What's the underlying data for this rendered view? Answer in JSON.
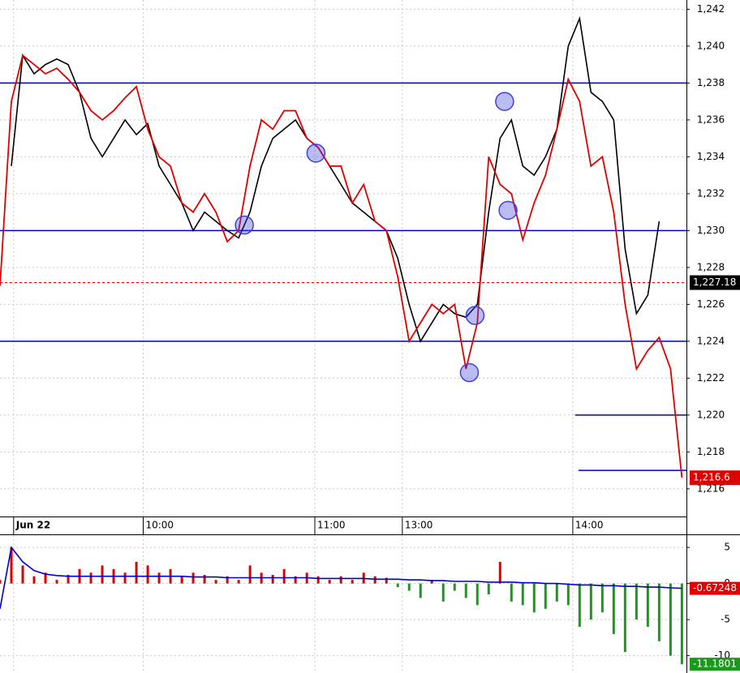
{
  "chart_data": [
    {
      "type": "line",
      "x": [
        0,
        1,
        2,
        3,
        4,
        5,
        6,
        7,
        8,
        9,
        10,
        11,
        12,
        13,
        14,
        15,
        16,
        17,
        18,
        19,
        20,
        21,
        22,
        23,
        24,
        25,
        26,
        27,
        28,
        29,
        30,
        31,
        32,
        33,
        34,
        35,
        36,
        37,
        38,
        39,
        40,
        41,
        42,
        43,
        44,
        45,
        46,
        47,
        48,
        49,
        50,
        51,
        52,
        53,
        54,
        55,
        56,
        57,
        58,
        59,
        60
      ],
      "xlim": [
        0,
        60.4
      ],
      "xticks": [
        {
          "value": 1.2,
          "label": "Jun 22"
        },
        {
          "value": 12.6,
          "label": "10:00"
        },
        {
          "value": 27.7,
          "label": "11:00"
        },
        {
          "value": 35.4,
          "label": "13:00"
        },
        {
          "value": 50.4,
          "label": "14:00"
        }
      ],
      "ylim": [
        1214.5,
        1242.5
      ],
      "yticks": [
        {
          "value": 1216,
          "label": "1,216"
        },
        {
          "value": 1218,
          "label": "1,218"
        },
        {
          "value": 1220,
          "label": "1,220"
        },
        {
          "value": 1222,
          "label": "1,222"
        },
        {
          "value": 1224,
          "label": "1,224"
        },
        {
          "value": 1226,
          "label": "1,226"
        },
        {
          "value": 1228,
          "label": "1,228"
        },
        {
          "value": 1230,
          "label": "1,230"
        },
        {
          "value": 1232,
          "label": "1,232"
        },
        {
          "value": 1234,
          "label": "1,234"
        },
        {
          "value": 1236,
          "label": "1,236"
        },
        {
          "value": 1238,
          "label": "1,238"
        },
        {
          "value": 1240,
          "label": "1,240"
        },
        {
          "value": 1242,
          "label": "1,242"
        }
      ],
      "grid": true,
      "series": [
        {
          "color": "#000000",
          "values": [
            null,
            1233.5,
            1239.5,
            1238.5,
            1239,
            1239.3,
            1239,
            1237.5,
            1235,
            1234,
            1235,
            1236,
            1235.2,
            1235.8,
            1233.5,
            1232.5,
            1231.5,
            1230,
            1231,
            1230.5,
            1230,
            1229.6,
            1231,
            1233.5,
            1235,
            1235.5,
            1236,
            1235,
            1234.5,
            1233.5,
            1232.5,
            1231.5,
            1231,
            1230.5,
            1230,
            1228.5,
            1226,
            1224,
            1225,
            1226,
            1225.5,
            1225.3,
            1226,
            1231,
            1235,
            1236,
            1233.5,
            1233,
            1234,
            1235.5,
            1240,
            1241.5,
            1237.5,
            1237,
            1236,
            1229,
            1225.5,
            1226.5,
            1230.5,
            null,
            null
          ]
        },
        {
          "color": "#e00000",
          "values": [
            1227,
            1237,
            1239.5,
            1239,
            1238.5,
            1238.8,
            1238.2,
            1237.5,
            1236.5,
            1236,
            1236.5,
            1237.2,
            1237.8,
            1235.5,
            1234,
            1233.5,
            1231.5,
            1231,
            1232,
            1231,
            1229.4,
            1230,
            1233.5,
            1236,
            1235.5,
            1236.5,
            1236.5,
            1235,
            1234.5,
            1233.5,
            1233.5,
            1231.5,
            1232.5,
            1230.5,
            1230,
            1227.5,
            1224,
            1225,
            1226,
            1225.5,
            1226,
            1222.5,
            1225,
            1234,
            1232.5,
            1232,
            1229.5,
            1231.5,
            1233,
            1235.5,
            1238.2,
            1237,
            1233.5,
            1234,
            1231,
            1226,
            1222.5,
            1223.5,
            1224.2,
            1222.5,
            1216.6
          ]
        }
      ],
      "hlines": [
        {
          "value": 1238,
          "x_start": 0,
          "color": "#0000cc"
        },
        {
          "value": 1230,
          "x_start": 0,
          "color": "#0000cc"
        },
        {
          "value": 1224,
          "x_start": 0,
          "color": "#0000cc"
        },
        {
          "value": 1220,
          "x_start": 50.6,
          "color": "#0000cc"
        },
        {
          "value": 1217,
          "x_start": 50.9,
          "color": "#0000cc"
        }
      ],
      "markers": {
        "x": [
          21.5,
          27.8,
          44.4,
          44.7,
          41.8,
          41.3
        ],
        "values": [
          1230.3,
          1234.2,
          1237,
          1231.1,
          1225.4,
          1222.3
        ],
        "color": "#4040e0"
      },
      "reference_line": {
        "value": 1227.18,
        "label": "1,227.18",
        "color": "#e00000"
      },
      "last_label": {
        "value": 1216.6,
        "label": "1,216.6",
        "color": "#e00000"
      }
    },
    {
      "type": "bar",
      "x": [
        0,
        1,
        2,
        3,
        4,
        5,
        6,
        7,
        8,
        9,
        10,
        11,
        12,
        13,
        14,
        15,
        16,
        17,
        18,
        19,
        20,
        21,
        22,
        23,
        24,
        25,
        26,
        27,
        28,
        29,
        30,
        31,
        32,
        33,
        34,
        35,
        36,
        37,
        38,
        39,
        40,
        41,
        42,
        43,
        44,
        45,
        46,
        47,
        48,
        49,
        50,
        51,
        52,
        53,
        54,
        55,
        56,
        57,
        58,
        59,
        60
      ],
      "xlim": [
        0,
        60.4
      ],
      "ylim": [
        -12.4,
        6.7
      ],
      "yticks": [
        5,
        0,
        -5,
        -10
      ],
      "grid": true,
      "values": [
        0.5,
        5,
        2.5,
        1,
        1.5,
        0.5,
        1.2,
        2,
        1.5,
        2.5,
        2,
        1.5,
        3,
        2.5,
        1.5,
        2,
        1,
        1.5,
        1.2,
        0.5,
        1,
        0.5,
        2.5,
        1.5,
        1.2,
        2,
        1,
        1.5,
        1,
        0.5,
        1,
        0.5,
        1.5,
        1,
        0.8,
        -0.5,
        -1,
        -2,
        0.5,
        -2.5,
        -1,
        -2,
        -3,
        -1.5,
        3,
        -2.5,
        -3,
        -4,
        -3.5,
        -2.5,
        -3,
        -6,
        -5,
        -4,
        -7,
        -9.5,
        -5,
        -6,
        -8,
        -10,
        -11.1801
      ],
      "positive_color": "#e00000",
      "negative_color": "#1a9a1a",
      "line": {
        "color": "#0000cc",
        "values": [
          -3.5,
          5,
          3,
          1.8,
          1.3,
          1.1,
          1,
          1,
          1,
          1,
          1,
          1,
          1,
          1,
          1,
          1,
          1,
          0.9,
          0.9,
          0.9,
          0.8,
          0.8,
          0.8,
          0.8,
          0.8,
          0.8,
          0.8,
          0.8,
          0.7,
          0.7,
          0.7,
          0.7,
          0.7,
          0.6,
          0.6,
          0.6,
          0.5,
          0.5,
          0.4,
          0.4,
          0.3,
          0.3,
          0.3,
          0.2,
          0.2,
          0.2,
          0.1,
          0.1,
          0,
          0,
          -0.1,
          -0.2,
          -0.2,
          -0.3,
          -0.3,
          -0.4,
          -0.4,
          -0.5,
          -0.5,
          -0.6,
          -0.67248
        ],
        "last_label": {
          "value": -0.67248,
          "label": "-0.67248",
          "color": "#e00000"
        }
      },
      "last_label": {
        "value": -11.1801,
        "label": "-11.1801",
        "color": "#1a9a1a"
      }
    }
  ]
}
